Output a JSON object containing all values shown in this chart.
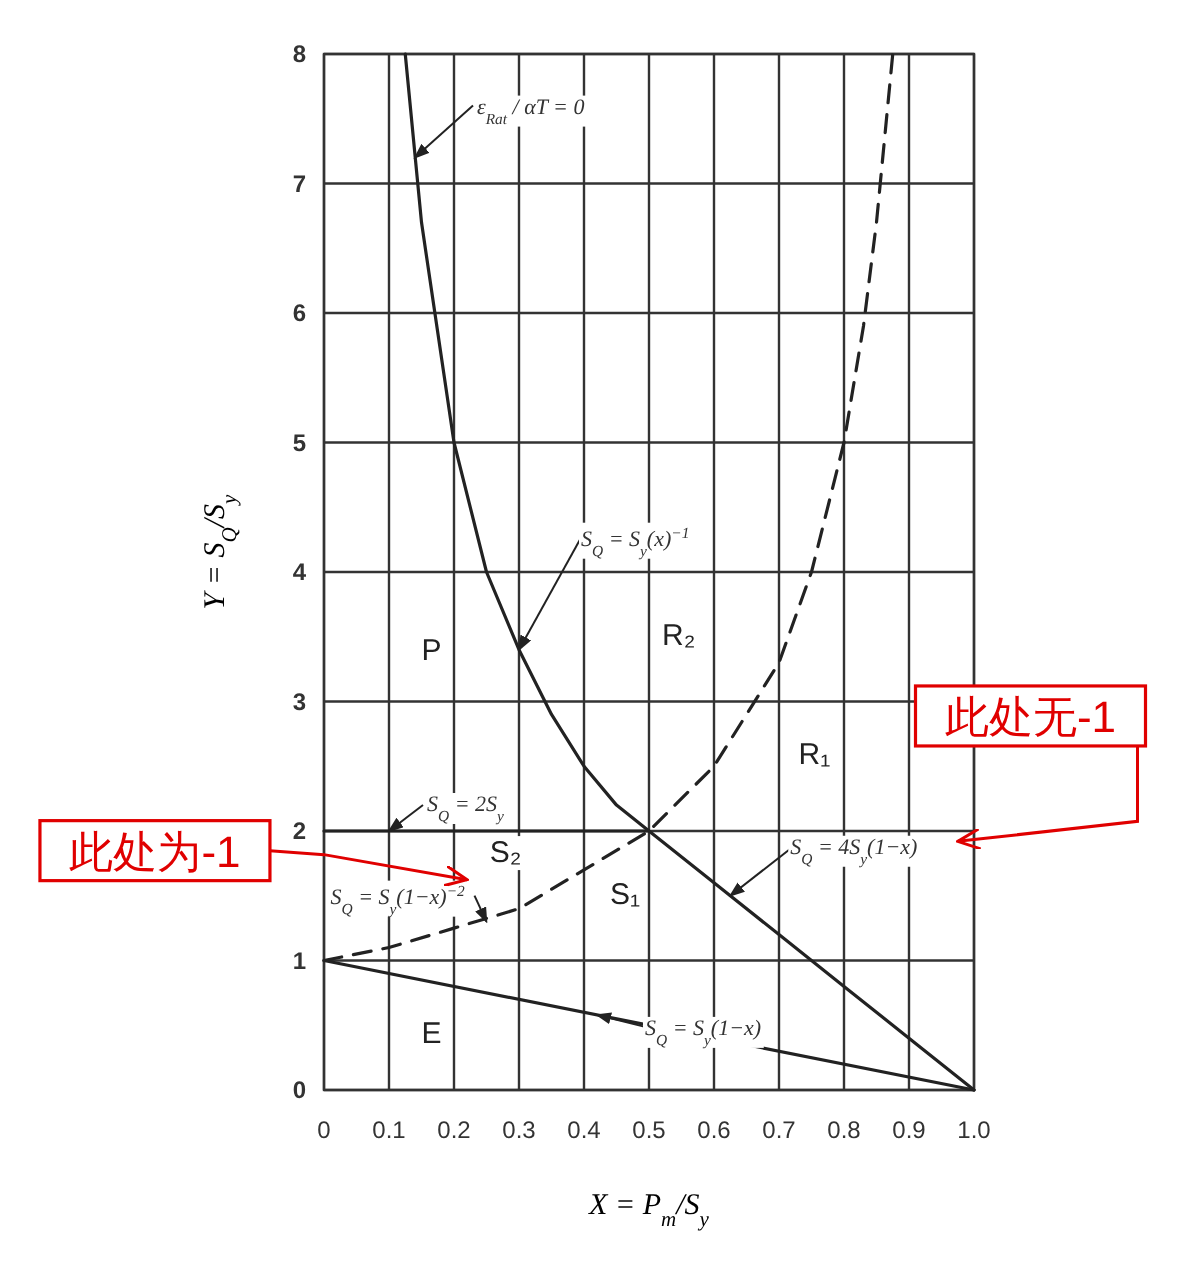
{
  "chart_data": {
    "type": "line",
    "xlabel": "X = P$_{m}$/S$_{y}$",
    "ylabel": "Y = S$_{Q}$/S$_{y}$",
    "xlim": [
      0,
      1
    ],
    "ylim": [
      0,
      8
    ],
    "xticks": [
      0,
      0.1,
      0.2,
      0.3,
      0.4,
      0.5,
      0.6,
      0.7,
      0.8,
      0.9,
      {
        "value": 1,
        "label": "1.0"
      }
    ],
    "yticks": [
      0,
      1,
      2,
      3,
      4,
      5,
      6,
      7,
      8
    ],
    "grid": true,
    "series": [
      {
        "color": "#222222",
        "line_style": "solid",
        "x": [
          0.125,
          0.15,
          0.2,
          0.25,
          0.3,
          0.35,
          0.4,
          0.45,
          0.5,
          0.6,
          0.7,
          0.8,
          0.9,
          1.0
        ],
        "values": [
          8,
          6.7,
          5,
          4,
          3.4,
          2.9,
          2.5,
          2.2,
          2,
          1.6,
          1.2,
          0.8,
          0.4,
          0
        ]
      },
      {
        "color": "#222222",
        "line_style": "dashed",
        "x": [
          0,
          0.1,
          0.2,
          0.3,
          0.4,
          0.5,
          0.6,
          0.7,
          0.75,
          0.8,
          0.83,
          0.85,
          0.875
        ],
        "values": [
          1,
          1.1,
          1.25,
          1.4,
          1.7,
          2,
          2.5,
          3.3,
          4,
          5,
          5.9,
          6.7,
          8
        ]
      },
      {
        "color": "#222222",
        "line_style": "solid",
        "x": [
          0,
          0.5
        ],
        "values": [
          2,
          2
        ]
      },
      {
        "color": "#222222",
        "line_style": "solid",
        "x": [
          0,
          1
        ],
        "values": [
          1,
          0
        ]
      }
    ],
    "annotations": [
      {
        "text": "ε$_{Rat}$ / αT = 0",
        "x": 0.14,
        "y": 7.2
      },
      {
        "text": "S$_{Q}$ = S$_{y}$(x)$^{−1}$",
        "x": 0.3,
        "y": 3.4
      },
      {
        "text": "S$_{Q}$ = 2S$_{y}$",
        "x": 0.1,
        "y": 2
      },
      {
        "text": "S$_{Q}$ = S$_{y}$(1−x)$^{−2}$",
        "x": 0.25,
        "y": 1.3
      },
      {
        "text": "S$_{Q}$ = 4S$_{y}$(1−x)",
        "x": 0.625,
        "y": 1.5
      },
      {
        "text": "S$_{Q}$ = S$_{y}$(1−x)",
        "x": 0.42,
        "y": 0.58
      },
      "P",
      "R₂",
      "R₁",
      "S₂",
      "S₁",
      "E",
      "此处为-1",
      "此处无-1"
    ]
  }
}
